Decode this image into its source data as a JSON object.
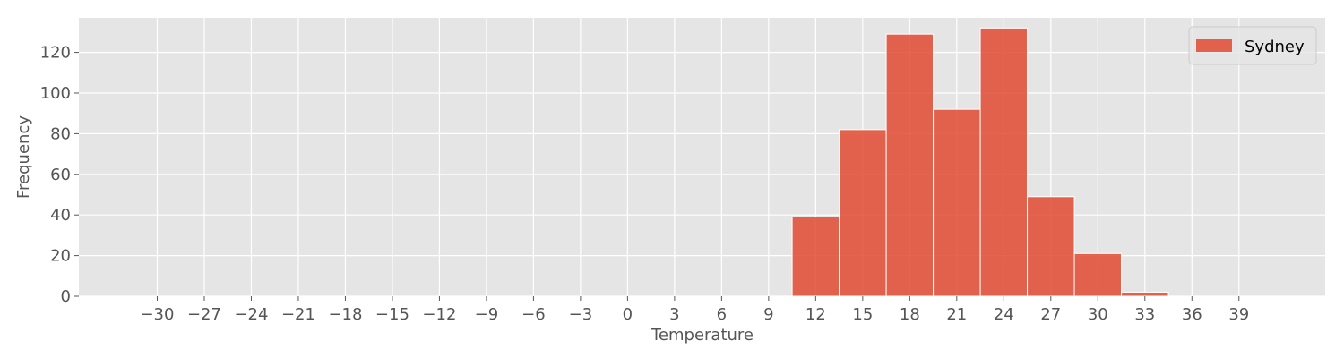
{
  "chart_data": {
    "type": "bar",
    "subtype": "histogram",
    "title": "",
    "xlabel": "Temperature",
    "ylabel": "Frequency",
    "xlim": [
      -35,
      44.5
    ],
    "ylim": [
      0,
      137
    ],
    "x_ticks": [
      -30,
      -27,
      -24,
      -21,
      -18,
      -15,
      -12,
      -9,
      -6,
      -3,
      0,
      3,
      6,
      9,
      12,
      15,
      18,
      21,
      24,
      27,
      30,
      33,
      36,
      39
    ],
    "x_tick_labels": [
      "−30",
      "−27",
      "−24",
      "−21",
      "−18",
      "−15",
      "−12",
      "−9",
      "−6",
      "−3",
      "0",
      "3",
      "6",
      "9",
      "12",
      "15",
      "18",
      "21",
      "24",
      "27",
      "30",
      "33",
      "36",
      "39"
    ],
    "y_ticks": [
      0,
      20,
      40,
      60,
      80,
      100,
      120
    ],
    "y_tick_labels": [
      "0",
      "20",
      "40",
      "60",
      "80",
      "100",
      "120"
    ],
    "grid": true,
    "legend": {
      "placement": "top-right",
      "entries": [
        "Sydney"
      ]
    },
    "series": [
      {
        "name": "Sydney",
        "color": "#e24a33",
        "bins": [
          {
            "x0": 10.5,
            "x1": 13.5,
            "value": 39
          },
          {
            "x0": 13.5,
            "x1": 16.5,
            "value": 82
          },
          {
            "x0": 16.5,
            "x1": 19.5,
            "value": 129
          },
          {
            "x0": 19.5,
            "x1": 22.5,
            "value": 92
          },
          {
            "x0": 22.5,
            "x1": 25.5,
            "value": 132
          },
          {
            "x0": 25.5,
            "x1": 28.5,
            "value": 49
          },
          {
            "x0": 28.5,
            "x1": 31.5,
            "value": 21
          },
          {
            "x0": 31.5,
            "x1": 34.5,
            "value": 2
          }
        ]
      }
    ],
    "colors": {
      "plot_background": "#e5e5e5",
      "grid": "#ffffff",
      "tick_text": "#555555"
    }
  }
}
